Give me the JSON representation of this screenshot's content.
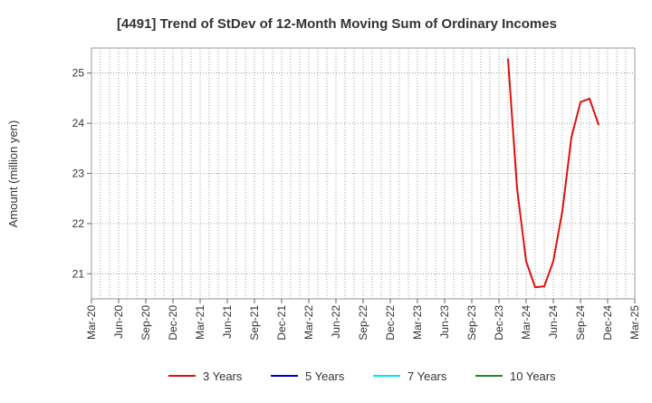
{
  "chart_data": {
    "type": "line",
    "title": "[4491]  Trend of StDev of 12-Month Moving Sum of Ordinary Incomes",
    "xlabel": "",
    "ylabel": "Amount (million yen)",
    "x_ticks": [
      "Mar-20",
      "Jun-20",
      "Sep-20",
      "Dec-20",
      "Mar-21",
      "Jun-21",
      "Sep-21",
      "Dec-21",
      "Mar-22",
      "Jun-22",
      "Sep-22",
      "Dec-22",
      "Mar-23",
      "Jun-23",
      "Sep-23",
      "Dec-23",
      "Mar-24",
      "Jun-24",
      "Sep-24",
      "Dec-24",
      "Mar-25"
    ],
    "y_ticks": [
      21,
      22,
      23,
      24,
      25
    ],
    "ylim": [
      20.5,
      25.5
    ],
    "grid": true,
    "legend_position": "bottom",
    "series": [
      {
        "name": "3 Years",
        "color": "#dd1111",
        "points": [
          {
            "x": "Jan-24",
            "y": 25.28
          },
          {
            "x": "Feb-24",
            "y": 22.7
          },
          {
            "x": "Mar-24",
            "y": 21.25
          },
          {
            "x": "Apr-24",
            "y": 20.73
          },
          {
            "x": "May-24",
            "y": 20.75
          },
          {
            "x": "Jun-24",
            "y": 21.25
          },
          {
            "x": "Jul-24",
            "y": 22.25
          },
          {
            "x": "Aug-24",
            "y": 23.72
          },
          {
            "x": "Sep-24",
            "y": 24.42
          },
          {
            "x": "Oct-24",
            "y": 24.49
          },
          {
            "x": "Nov-24",
            "y": 23.97
          }
        ]
      },
      {
        "name": "5 Years",
        "color": "#0000cc",
        "points": []
      },
      {
        "name": "7 Years",
        "color": "#00e5ff",
        "points": []
      },
      {
        "name": "10 Years",
        "color": "#228822",
        "points": []
      }
    ]
  }
}
